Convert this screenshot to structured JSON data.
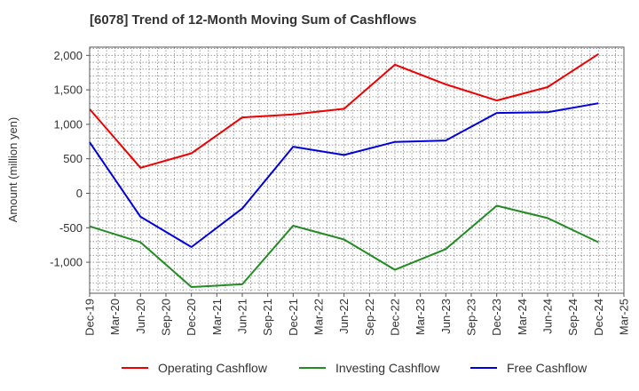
{
  "title": "[6078]  Trend of 12-Month Moving Sum of Cashflows",
  "chart_data": {
    "type": "line",
    "title": "[6078]  Trend of 12-Month Moving Sum of Cashflows",
    "xlabel": "",
    "ylabel": "Amount (million yen)",
    "ylim": [
      -1450,
      2120
    ],
    "y_ticks": [
      2000,
      1500,
      1000,
      500,
      0,
      -500,
      -1000
    ],
    "y_tick_labels": [
      "2,000",
      "1,500",
      "1,000",
      "500",
      "0",
      "-500",
      "-1,000"
    ],
    "x": [
      "Dec-19",
      "Mar-20",
      "Jun-20",
      "Sep-20",
      "Dec-20",
      "Mar-21",
      "Jun-21",
      "Sep-21",
      "Dec-21",
      "Mar-22",
      "Jun-22",
      "Sep-22",
      "Dec-22",
      "Mar-23",
      "Jun-23",
      "Sep-23",
      "Dec-23",
      "Mar-24",
      "Jun-24",
      "Sep-24",
      "Dec-24",
      "Mar-25"
    ],
    "grid": true,
    "legend_position": "bottom",
    "series": [
      {
        "name": "Operating Cashflow",
        "color": "#ee0000",
        "points": [
          [
            "Dec-19",
            1220
          ],
          [
            "Jun-20",
            370
          ],
          [
            "Dec-20",
            580
          ],
          [
            "Jun-21",
            1100
          ],
          [
            "Dec-21",
            1145
          ],
          [
            "Jun-22",
            1225
          ],
          [
            "Dec-22",
            1865
          ],
          [
            "Jun-23",
            1580
          ],
          [
            "Dec-23",
            1345
          ],
          [
            "Jun-24",
            1540
          ],
          [
            "Dec-24",
            2020
          ]
        ]
      },
      {
        "name": "Investing Cashflow",
        "color": "#228b22",
        "points": [
          [
            "Dec-19",
            -480
          ],
          [
            "Jun-20",
            -710
          ],
          [
            "Dec-20",
            -1360
          ],
          [
            "Jun-21",
            -1320
          ],
          [
            "Dec-21",
            -470
          ],
          [
            "Jun-22",
            -670
          ],
          [
            "Dec-22",
            -1110
          ],
          [
            "Jun-23",
            -810
          ],
          [
            "Dec-23",
            -180
          ],
          [
            "Jun-24",
            -360
          ],
          [
            "Dec-24",
            -710
          ]
        ]
      },
      {
        "name": "Free Cashflow",
        "color": "#0000dd",
        "points": [
          [
            "Dec-19",
            740
          ],
          [
            "Jun-20",
            -340
          ],
          [
            "Dec-20",
            -780
          ],
          [
            "Jun-21",
            -220
          ],
          [
            "Dec-21",
            675
          ],
          [
            "Jun-22",
            555
          ],
          [
            "Dec-22",
            745
          ],
          [
            "Jun-23",
            765
          ],
          [
            "Dec-23",
            1165
          ],
          [
            "Jun-24",
            1175
          ],
          [
            "Dec-24",
            1305
          ]
        ]
      }
    ]
  }
}
